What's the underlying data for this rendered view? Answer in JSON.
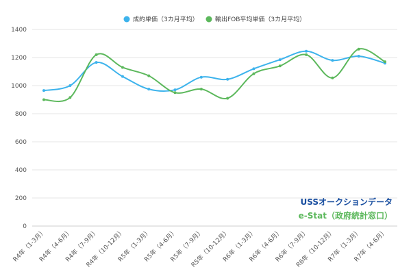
{
  "colors": {
    "series1": "#3db3ec",
    "series2": "#5cb85c",
    "source1": "#1a4fa0",
    "source2": "#5cb85c",
    "grid": "#e6e6e6",
    "axis": "#cccccc"
  },
  "sources": {
    "line1": "USSオークションデータ",
    "line2": "e-Stat（政府統計窓口）"
  },
  "chart_data": {
    "type": "line",
    "title": "",
    "xlabel": "",
    "ylabel": "",
    "ylim": [
      0,
      1400
    ],
    "yticks": [
      0,
      200,
      400,
      600,
      800,
      1000,
      1200,
      1400
    ],
    "grid": true,
    "legend_position": "top",
    "smooth": true,
    "categories": [
      "R4年（1-3月）",
      "R4年（4-6月）",
      "R4年（7-9月）",
      "R4年（10-12月）",
      "R5年（1-3月）",
      "R5年（4-6月）",
      "R5年（7-9月）",
      "R5年（10-12月）",
      "R6年（1-3月）",
      "R6年（4-6月）",
      "R6年（7-9月）",
      "R6年（10-12月）",
      "R7年（1-3月）",
      "R7年（4-6月）"
    ],
    "series": [
      {
        "name": "成約単価（3カ月平均）",
        "color": "#3db3ec",
        "values": [
          965,
          1000,
          1165,
          1065,
          975,
          970,
          1060,
          1045,
          1120,
          1185,
          1245,
          1180,
          1210,
          1160
        ]
      },
      {
        "name": "輸出FOB平均単価（3カ月平均）",
        "color": "#5cb85c",
        "values": [
          900,
          915,
          1220,
          1130,
          1070,
          950,
          975,
          910,
          1085,
          1140,
          1220,
          1055,
          1260,
          1170
        ]
      }
    ]
  }
}
